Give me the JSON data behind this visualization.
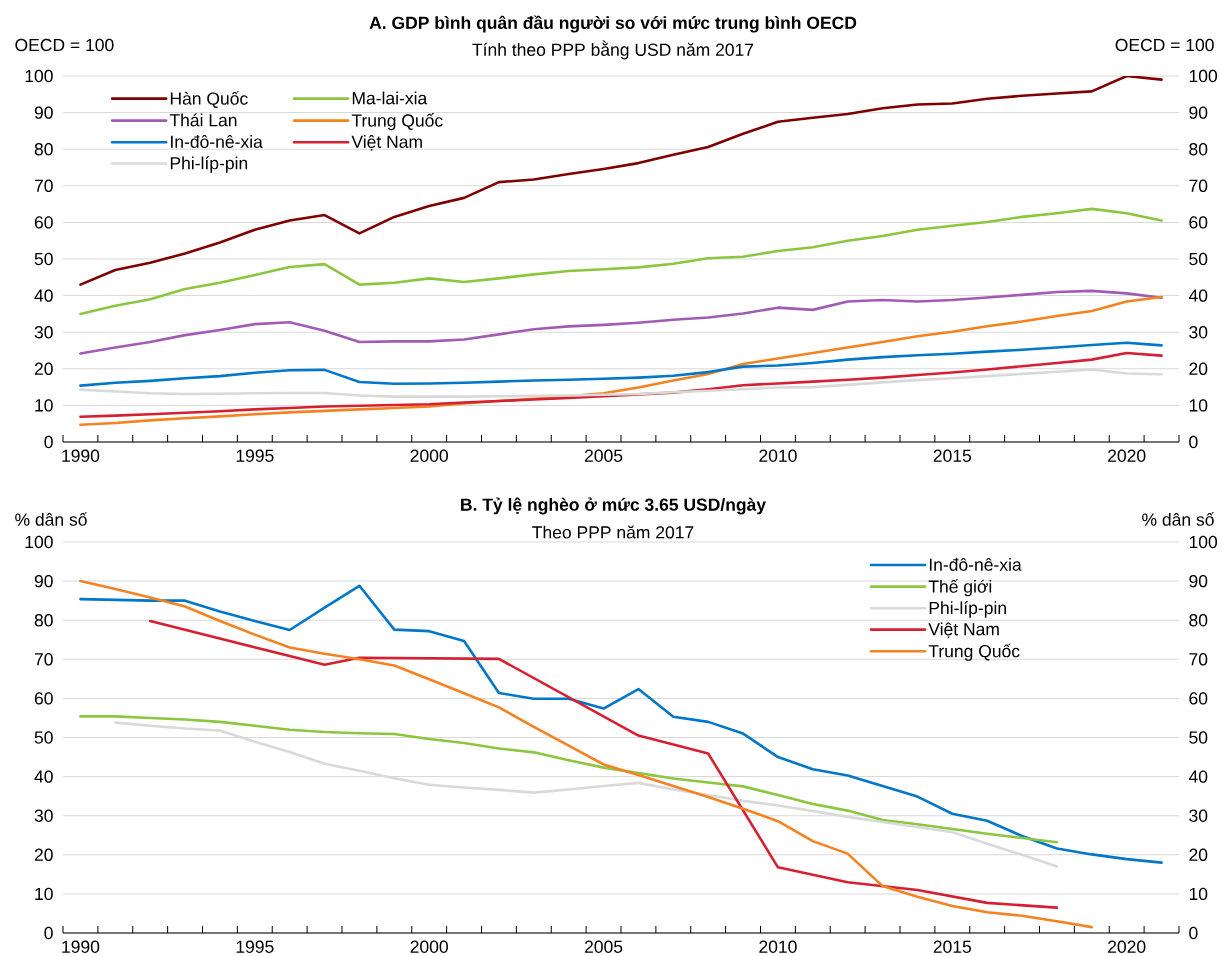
{
  "chart_data": [
    {
      "type": "line",
      "title": "A. GDP bình quân đầu người so với mức trung bình OECD",
      "subtitle": "Tính theo PPP bằng USD năm 2017",
      "ylabel": "OECD = 100",
      "y2label": "OECD = 100",
      "x": [
        1990,
        1991,
        1992,
        1993,
        1994,
        1995,
        1996,
        1997,
        1998,
        1999,
        2000,
        2001,
        2002,
        2003,
        2004,
        2005,
        2006,
        2007,
        2008,
        2009,
        2010,
        2011,
        2012,
        2013,
        2014,
        2015,
        2016,
        2017,
        2018,
        2019,
        2020,
        2021
      ],
      "xlim": [
        1989.5,
        2021.5
      ],
      "xticks": [
        {
          "value": 1989.5,
          "label": null
        },
        {
          "value": 1990.5,
          "label": null
        },
        {
          "value": 1991.5,
          "label": null
        },
        {
          "value": 1992.5,
          "label": null
        },
        {
          "value": 1993.5,
          "label": null
        },
        {
          "value": 1994.5,
          "label": null
        },
        {
          "value": 1995.5,
          "label": null
        },
        {
          "value": 1996.5,
          "label": null
        },
        {
          "value": 1997.5,
          "label": null
        },
        {
          "value": 1998.5,
          "label": null
        },
        {
          "value": 1999.5,
          "label": null
        },
        {
          "value": 2000.5,
          "label": null
        },
        {
          "value": 2001.5,
          "label": null
        },
        {
          "value": 2002.5,
          "label": null
        },
        {
          "value": 2003.5,
          "label": null
        },
        {
          "value": 2004.5,
          "label": null
        },
        {
          "value": 2005.5,
          "label": null
        },
        {
          "value": 2006.5,
          "label": null
        },
        {
          "value": 2007.5,
          "label": null
        },
        {
          "value": 2008.5,
          "label": null
        },
        {
          "value": 2009.5,
          "label": null
        },
        {
          "value": 2010.5,
          "label": null
        },
        {
          "value": 2011.5,
          "label": null
        },
        {
          "value": 2012.5,
          "label": null
        },
        {
          "value": 2013.5,
          "label": null
        },
        {
          "value": 2014.5,
          "label": null
        },
        {
          "value": 2015.5,
          "label": null
        },
        {
          "value": 2016.5,
          "label": null
        },
        {
          "value": 2017.5,
          "label": null
        },
        {
          "value": 2018.5,
          "label": null
        },
        {
          "value": 2019.5,
          "label": null
        },
        {
          "value": 2020.5,
          "label": null
        },
        {
          "value": 2021.5,
          "label": null
        },
        1990,
        1995,
        2000,
        2005,
        2010,
        2015,
        2020
      ],
      "ylim": [
        0,
        100
      ],
      "yticks": [
        0,
        10,
        20,
        30,
        40,
        50,
        60,
        70,
        80,
        90,
        100
      ],
      "y2lim": [
        0,
        100
      ],
      "y2ticks": [
        0,
        10,
        20,
        30,
        40,
        50,
        60,
        70,
        80,
        90,
        100
      ],
      "grid": "y",
      "legend": "top left",
      "series": [
        {
          "name": "Hàn Quốc",
          "color": "#7f0000",
          "values": [
            43,
            47,
            49,
            51.5,
            54.5,
            58,
            60.5,
            62,
            57,
            61.5,
            64.5,
            66.7,
            71,
            71.7,
            73.2,
            74.6,
            76.2,
            78.5,
            80.6,
            84.2,
            87.5,
            88.6,
            89.6,
            91.2,
            92.2,
            92.5,
            93.8,
            94.6,
            95.2,
            95.8,
            100,
            99
          ]
        },
        {
          "name": "Ma-lai-xia",
          "color": "#8cc63f",
          "values": [
            35,
            37.2,
            39,
            41.8,
            43.5,
            45.6,
            47.8,
            48.6,
            43,
            43.5,
            44.7,
            43.7,
            44.7,
            45.8,
            46.7,
            47.2,
            47.7,
            48.7,
            50.2,
            50.6,
            52.2,
            53.2,
            55,
            56.3,
            58,
            59.1,
            60.1,
            61.5,
            62.5,
            63.7,
            62.5,
            60.5
          ]
        },
        {
          "name": "Thái Lan",
          "color": "#a05cb4",
          "values": [
            24.2,
            25.8,
            27.3,
            29.2,
            30.6,
            32.2,
            32.7,
            30.4,
            27.3,
            27.5,
            27.5,
            28,
            29.4,
            30.8,
            31.6,
            32,
            32.6,
            33.4,
            34,
            35.1,
            36.7,
            36.1,
            38.4,
            38.8,
            38.4,
            38.8,
            39.5,
            40.2,
            41,
            41.3,
            40.6,
            39.4
          ]
        },
        {
          "name": "Trung Quốc",
          "color": "#f58220",
          "values": [
            4.7,
            5.2,
            5.9,
            6.5,
            7,
            7.6,
            8.1,
            8.5,
            8.9,
            9.3,
            9.7,
            10.5,
            11.2,
            11.8,
            12.5,
            13.3,
            14.9,
            16.8,
            18.6,
            21.3,
            22.8,
            24.3,
            25.8,
            27.3,
            28.9,
            30.1,
            31.6,
            32.9,
            34.4,
            35.8,
            38.4,
            39.6
          ]
        },
        {
          "name": "In-đô-nê-xia",
          "color": "#0077c8",
          "values": [
            15.4,
            16.2,
            16.7,
            17.4,
            18,
            18.9,
            19.6,
            19.7,
            16.4,
            15.9,
            16,
            16.2,
            16.5,
            16.8,
            17,
            17.3,
            17.6,
            18.1,
            19.1,
            20.6,
            20.9,
            21.6,
            22.5,
            23.2,
            23.7,
            24.1,
            24.7,
            25.2,
            25.8,
            26.5,
            27.1,
            26.4
          ]
        },
        {
          "name": "Việt Nam",
          "color": "#d62031",
          "values": [
            6.9,
            7.2,
            7.6,
            8,
            8.4,
            8.9,
            9.3,
            9.7,
            9.9,
            10.1,
            10.3,
            10.8,
            11.2,
            11.6,
            12,
            12.5,
            13,
            13.5,
            14.4,
            15.5,
            16,
            16.5,
            17,
            17.6,
            18.3,
            19,
            19.8,
            20.7,
            21.6,
            22.5,
            24.3,
            23.6
          ]
        },
        {
          "name": "Phi-líp-pin",
          "color": "#d9d9d9",
          "values": [
            14.3,
            13.8,
            13.3,
            13.1,
            13.2,
            13.3,
            13.4,
            13.4,
            12.7,
            12.4,
            12.4,
            12.4,
            12.5,
            12.6,
            12.7,
            12.9,
            13.1,
            13.6,
            14,
            14.4,
            14.9,
            15,
            15.6,
            16.3,
            16.9,
            17.4,
            18,
            18.6,
            19.2,
            19.8,
            18.7,
            18.5
          ]
        }
      ]
    },
    {
      "type": "line",
      "title": "B. Tỷ lệ nghèo ở mức 3.65 USD/ngày",
      "subtitle": "Theo PPP năm 2017",
      "ylabel": "% dân số",
      "y2label": "% dân số",
      "x": [
        1990,
        1991,
        1992,
        1993,
        1994,
        1995,
        1996,
        1997,
        1998,
        1999,
        2000,
        2001,
        2002,
        2003,
        2004,
        2005,
        2006,
        2007,
        2008,
        2009,
        2010,
        2011,
        2012,
        2013,
        2014,
        2015,
        2016,
        2017,
        2018,
        2019,
        2020,
        2021
      ],
      "xlim": [
        1989.5,
        2021.5
      ],
      "xticks": [
        {
          "value": 1989.5,
          "label": null
        },
        {
          "value": 1990.5,
          "label": null
        },
        {
          "value": 1991.5,
          "label": null
        },
        {
          "value": 1992.5,
          "label": null
        },
        {
          "value": 1993.5,
          "label": null
        },
        {
          "value": 1994.5,
          "label": null
        },
        {
          "value": 1995.5,
          "label": null
        },
        {
          "value": 1996.5,
          "label": null
        },
        {
          "value": 1997.5,
          "label": null
        },
        {
          "value": 1998.5,
          "label": null
        },
        {
          "value": 1999.5,
          "label": null
        },
        {
          "value": 2000.5,
          "label": null
        },
        {
          "value": 2001.5,
          "label": null
        },
        {
          "value": 2002.5,
          "label": null
        },
        {
          "value": 2003.5,
          "label": null
        },
        {
          "value": 2004.5,
          "label": null
        },
        {
          "value": 2005.5,
          "label": null
        },
        {
          "value": 2006.5,
          "label": null
        },
        {
          "value": 2007.5,
          "label": null
        },
        {
          "value": 2008.5,
          "label": null
        },
        {
          "value": 2009.5,
          "label": null
        },
        {
          "value": 2010.5,
          "label": null
        },
        {
          "value": 2011.5,
          "label": null
        },
        {
          "value": 2012.5,
          "label": null
        },
        {
          "value": 2013.5,
          "label": null
        },
        {
          "value": 2014.5,
          "label": null
        },
        {
          "value": 2015.5,
          "label": null
        },
        {
          "value": 2016.5,
          "label": null
        },
        {
          "value": 2017.5,
          "label": null
        },
        {
          "value": 2018.5,
          "label": null
        },
        {
          "value": 2019.5,
          "label": null
        },
        {
          "value": 2020.5,
          "label": null
        },
        {
          "value": 2021.5,
          "label": null
        },
        1990,
        1995,
        2000,
        2005,
        2010,
        2015,
        2020
      ],
      "ylim": [
        0,
        100
      ],
      "yticks": [
        0,
        10,
        20,
        30,
        40,
        50,
        60,
        70,
        80,
        90,
        100
      ],
      "y2lim": [
        0,
        100
      ],
      "y2ticks": [
        0,
        10,
        20,
        30,
        40,
        50,
        60,
        70,
        80,
        90,
        100
      ],
      "grid": "y",
      "legend": "top right",
      "series": [
        {
          "name": "In-đô-nê-xia",
          "color": "#0077c8",
          "values": [
            85.4,
            85.2,
            85,
            85,
            82.2,
            79.8,
            77.5,
            83.2,
            88.8,
            77.6,
            77.2,
            74.7,
            61.4,
            59.9,
            59.9,
            57.4,
            62.4,
            55.3,
            54,
            51,
            45,
            41.9,
            40.3,
            37.6,
            34.9,
            30.5,
            28.7,
            24.8,
            21.6,
            20.1,
            18.9,
            18
          ]
        },
        {
          "name": "Thế giới",
          "color": "#8cc63f",
          "x": [
            1990,
            1991,
            1992,
            1993,
            1994,
            1995,
            1996,
            1997,
            1998,
            1999,
            2000,
            2001,
            2002,
            2003,
            2004,
            2005,
            2006,
            2007,
            2008,
            2009,
            2010,
            2011,
            2012,
            2013,
            2014,
            2015,
            2016,
            2017,
            2018
          ],
          "values": [
            55.4,
            55.4,
            55,
            54.6,
            54,
            53,
            52,
            51.4,
            51.1,
            50.9,
            49.6,
            48.6,
            47.2,
            46.2,
            44.2,
            42.3,
            40.9,
            39.5,
            38.5,
            37.5,
            35.3,
            33,
            31.3,
            28.9,
            27.8,
            26.6,
            25.4,
            24.3,
            23.2
          ]
        },
        {
          "name": "Phi-líp-pin",
          "color": "#d9d9d9",
          "x": [
            1991,
            1992,
            1993,
            1994,
            1995,
            1996,
            1997,
            1998,
            1999,
            2000,
            2001,
            2002,
            2003,
            2004,
            2005,
            2006,
            2007,
            2008,
            2009,
            2010,
            2011,
            2012,
            2013,
            2014,
            2015,
            2016,
            2017,
            2018
          ],
          "values": [
            53.8,
            53,
            52.3,
            51.8,
            48.9,
            46.3,
            43.3,
            41.5,
            39.6,
            37.9,
            37.2,
            36.6,
            35.9,
            36.7,
            37.6,
            38.4,
            36.7,
            35.3,
            33.8,
            32.6,
            31.2,
            29.7,
            28.4,
            27.1,
            25.8,
            22.8,
            20,
            17
          ]
        },
        {
          "name": "Việt Nam",
          "color": "#d62031",
          "x": [
            1992,
            1997,
            1998,
            2002,
            2006,
            2008,
            2010,
            2012,
            2014,
            2016,
            2018
          ],
          "values": [
            79.8,
            68.6,
            70.4,
            70.1,
            50.5,
            45.9,
            16.8,
            13,
            11,
            7.7,
            6.5
          ]
        },
        {
          "name": "Trung Quốc",
          "color": "#f58220",
          "x": [
            1990,
            1991,
            1992,
            1993,
            1994,
            1995,
            1996,
            1997,
            1998,
            1999,
            2000,
            2001,
            2002,
            2003,
            2004,
            2005,
            2006,
            2007,
            2008,
            2009,
            2010,
            2011,
            2012,
            2013,
            2014,
            2015,
            2016,
            2017,
            2018,
            2019
          ],
          "values": [
            90,
            88,
            85.8,
            83.5,
            79.8,
            76.3,
            73,
            71.4,
            70,
            68.4,
            64.9,
            61.3,
            57.7,
            52.7,
            47.9,
            43.1,
            40.4,
            37.6,
            34.8,
            31.8,
            28.6,
            23.5,
            20.3,
            12,
            9.3,
            6.9,
            5.3,
            4.4,
            3,
            1.5
          ]
        }
      ]
    }
  ]
}
